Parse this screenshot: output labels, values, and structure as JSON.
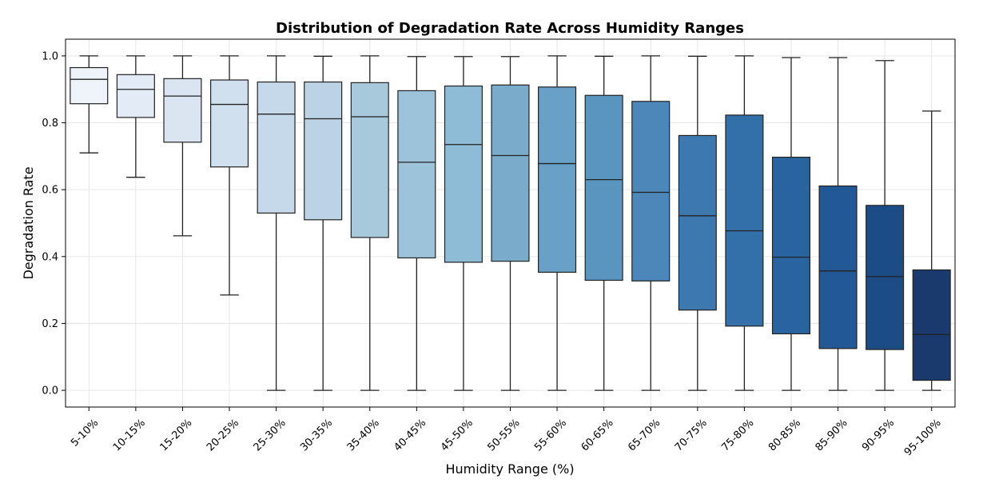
{
  "chart_data": {
    "type": "box",
    "title": "Distribution of Degradation Rate Across Humidity Ranges",
    "xlabel": "Humidity Range (%)",
    "ylabel": "Degradation Rate",
    "ylim": [
      -0.05,
      1.05
    ],
    "yticks": [
      "0.0",
      "0.2",
      "0.4",
      "0.6",
      "0.8",
      "1.0"
    ],
    "grid": true,
    "categories": [
      "5-10%",
      "10-15%",
      "15-20%",
      "20-25%",
      "25-30%",
      "30-35%",
      "35-40%",
      "40-45%",
      "45-50%",
      "50-55%",
      "55-60%",
      "60-65%",
      "65-70%",
      "70-75%",
      "75-80%",
      "80-85%",
      "85-90%",
      "90-95%",
      "95-100%"
    ],
    "boxes": [
      {
        "whislo": 0.71,
        "q1": 0.857,
        "med": 0.93,
        "q3": 0.965,
        "whishi": 1.0
      },
      {
        "whislo": 0.637,
        "q1": 0.816,
        "med": 0.9,
        "q3": 0.944,
        "whishi": 1.0
      },
      {
        "whislo": 0.462,
        "q1": 0.742,
        "med": 0.88,
        "q3": 0.932,
        "whishi": 1.0
      },
      {
        "whislo": 0.285,
        "q1": 0.668,
        "med": 0.855,
        "q3": 0.928,
        "whishi": 1.0
      },
      {
        "whislo": 0.0,
        "q1": 0.53,
        "med": 0.826,
        "q3": 0.922,
        "whishi": 1.0
      },
      {
        "whislo": 0.0,
        "q1": 0.51,
        "med": 0.812,
        "q3": 0.922,
        "whishi": 0.999
      },
      {
        "whislo": 0.0,
        "q1": 0.457,
        "med": 0.818,
        "q3": 0.92,
        "whishi": 1.0
      },
      {
        "whislo": 0.0,
        "q1": 0.396,
        "med": 0.682,
        "q3": 0.896,
        "whishi": 0.998
      },
      {
        "whislo": 0.0,
        "q1": 0.383,
        "med": 0.735,
        "q3": 0.91,
        "whishi": 0.998
      },
      {
        "whislo": 0.0,
        "q1": 0.386,
        "med": 0.702,
        "q3": 0.913,
        "whishi": 0.998
      },
      {
        "whislo": 0.0,
        "q1": 0.353,
        "med": 0.678,
        "q3": 0.907,
        "whishi": 1.0
      },
      {
        "whislo": 0.0,
        "q1": 0.329,
        "med": 0.63,
        "q3": 0.882,
        "whishi": 0.999
      },
      {
        "whislo": 0.0,
        "q1": 0.327,
        "med": 0.592,
        "q3": 0.864,
        "whishi": 1.0
      },
      {
        "whislo": 0.0,
        "q1": 0.24,
        "med": 0.522,
        "q3": 0.762,
        "whishi": 0.999
      },
      {
        "whislo": 0.0,
        "q1": 0.192,
        "med": 0.477,
        "q3": 0.823,
        "whishi": 1.0
      },
      {
        "whislo": 0.0,
        "q1": 0.169,
        "med": 0.398,
        "q3": 0.697,
        "whishi": 0.995
      },
      {
        "whislo": 0.0,
        "q1": 0.125,
        "med": 0.357,
        "q3": 0.611,
        "whishi": 0.995
      },
      {
        "whislo": 0.0,
        "q1": 0.122,
        "med": 0.34,
        "q3": 0.553,
        "whishi": 0.986
      },
      {
        "whislo": 0.0,
        "q1": 0.03,
        "med": 0.167,
        "q3": 0.36,
        "whishi": 0.835
      }
    ],
    "colors": [
      "#eff4fb",
      "#e3ecf6",
      "#dae5f1",
      "#d0e0ef",
      "#c6d9ea",
      "#bbd3e4",
      "#a8c8db",
      "#9cc3d9",
      "#8ebcd6",
      "#7aabcb",
      "#68a0c8",
      "#5a95c0",
      "#4d87ba",
      "#3d79af",
      "#336fa8",
      "#2a64a0",
      "#225896",
      "#1c4c86",
      "#1a3a6e"
    ]
  }
}
